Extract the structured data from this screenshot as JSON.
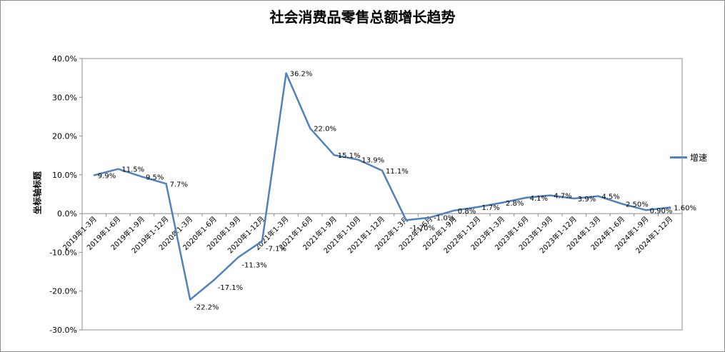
{
  "chart_data": {
    "type": "line",
    "title": "社会消费品零售总额增长趋势",
    "ylabel": "坐标轴标题",
    "xlabel": "",
    "ylim": [
      -30,
      40
    ],
    "yticks": [
      "40.0%",
      "30.0%",
      "20.0%",
      "10.0%",
      "0.0%",
      "-10.0%",
      "-20.0%",
      "-30.0%"
    ],
    "grid": false,
    "legend_position": "right",
    "categories": [
      "2019年1-3月",
      "2019年1-6月",
      "2019年1-9月",
      "2019年1-12月",
      "2020年1-3月",
      "2020年1-6月",
      "2020年1-9月",
      "2020年1-12月",
      "2021年1-3月",
      "2021年1-6月",
      "2021年1-9月",
      "2021年1-10月",
      "2021年1-12月",
      "2022年1-3月",
      "2022年1-6月",
      "2022年1-9月",
      "2022年1-12月",
      "2023年1-3月",
      "2023年1-6月",
      "2023年1-9月",
      "2023年1-12月",
      "2024年1-3月",
      "2024年1-6月",
      "2024年1-9月",
      "2024年1-12月"
    ],
    "series": [
      {
        "name": "增速",
        "color": "#4f81bd",
        "values": [
          9.9,
          11.5,
          9.5,
          7.7,
          -22.2,
          -17.1,
          -11.3,
          -7.1,
          36.2,
          22.0,
          15.1,
          13.9,
          11.1,
          -1.7,
          -1.0,
          0.8,
          1.7,
          2.8,
          4.1,
          4.7,
          3.9,
          4.5,
          2.5,
          0.9,
          1.6
        ],
        "labels": [
          "9.9%",
          "11.5%",
          "9.5%",
          "7.7%",
          "-22.2%",
          "-17.1%",
          "-11.3%",
          "-7.1%",
          "36.2%",
          "22.0%",
          "15.1%",
          "13.9%",
          "11.1%",
          "-1.70%",
          "-1.0%",
          "0.8%",
          "1.7%",
          "2.8%",
          "4.1%",
          "4.7%",
          "3.9%",
          "4.5%",
          "2.50%",
          "0.90%",
          "1.60%"
        ]
      }
    ]
  }
}
